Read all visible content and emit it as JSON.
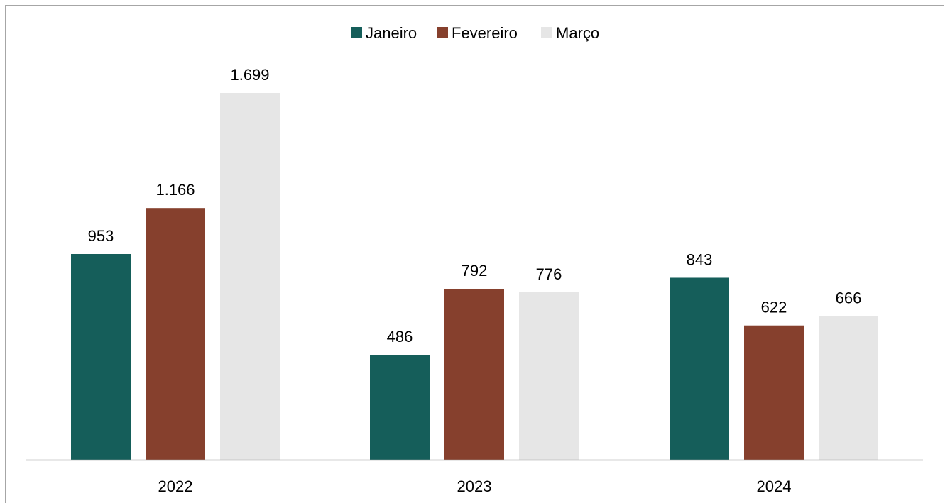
{
  "chart_data": {
    "type": "bar",
    "title": "",
    "xlabel": "",
    "ylabel": "",
    "categories": [
      "2022",
      "2023",
      "2024"
    ],
    "series": [
      {
        "name": "Janeiro",
        "color": "#155e5a",
        "values": [
          953,
          486,
          843
        ],
        "labels": [
          "953",
          "486",
          "843"
        ]
      },
      {
        "name": "Fevereiro",
        "color": "#86402d",
        "values": [
          1166,
          792,
          622
        ],
        "labels": [
          "1.166",
          "792",
          "622"
        ]
      },
      {
        "name": "Março",
        "color": "#e6e6e6",
        "values": [
          1699,
          776,
          666
        ],
        "labels": [
          "1.699",
          "776",
          "666"
        ]
      }
    ],
    "ylim": [
      0,
      1699
    ],
    "grid": false,
    "legend_position": "top-center",
    "axis_line_color": "#a6a6a6"
  }
}
